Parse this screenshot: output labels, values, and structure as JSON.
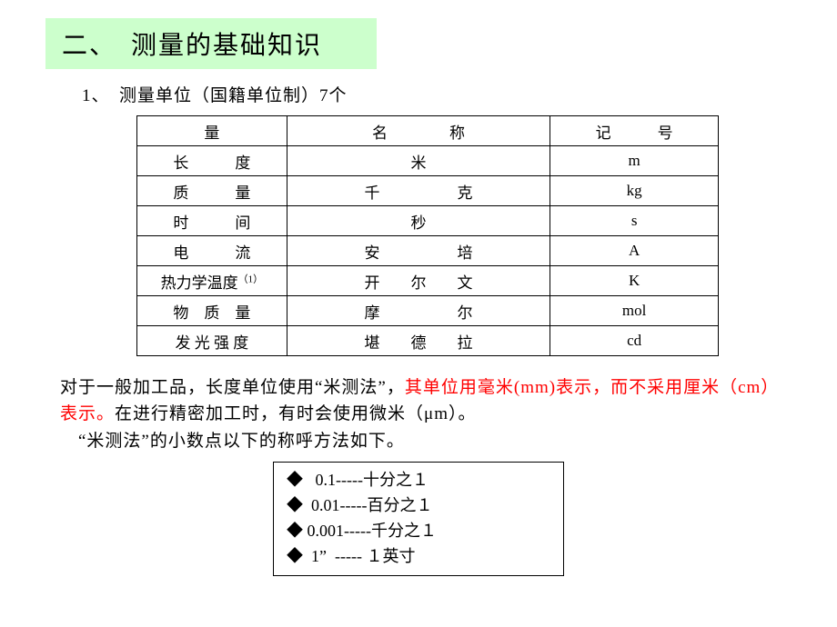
{
  "title": "二、　测量的基础知识",
  "subtitle": "1、　测量单位（国籍单位制）7个",
  "table": {
    "headers": {
      "c1": "量",
      "c2": "名　　　　称",
      "c3": "记　　　号"
    },
    "rows": [
      {
        "c1": "长　　　度",
        "c2": "米",
        "c3": "m"
      },
      {
        "c1": "质　　　量",
        "c2": "千　　　　　克",
        "c3": "kg"
      },
      {
        "c1": "时　　　间",
        "c2": "秒",
        "c3": "s"
      },
      {
        "c1": "电　　　流",
        "c2": "安　　　　　培",
        "c3": "A"
      },
      {
        "c1_html": "热力学温度",
        "sup": "（1）",
        "c2": "开　　尔　　文",
        "c3": "K"
      },
      {
        "c1": "物　质　量",
        "c2": "摩　　　　　尔",
        "c3": "mol"
      },
      {
        "c1": "发 光 强 度",
        "c2": "堪　　德　　拉",
        "c3": "cd"
      }
    ]
  },
  "note": {
    "p1a": "对于一般加工品，长度单位使用“米测法”，",
    "p1b_red": "其单位用毫米(mm)表示，而不采用厘米（cm）表示。",
    "p1c": "在进行精密加工时，有时会使用微米（μm）。",
    "p2": "　“米测法”的小数点以下的称呼方法如下。"
  },
  "decimals": {
    "r1": "◆   0.1-----十分之１",
    "r2": "◆  0.01-----百分之１",
    "r3": "◆ 0.001-----千分之１",
    "r4": "◆  1”  ----- １英寸"
  },
  "colors": {
    "title_bg": "#ccffcc",
    "red": "#ff0000",
    "border": "#000000",
    "bg": "#ffffff"
  }
}
